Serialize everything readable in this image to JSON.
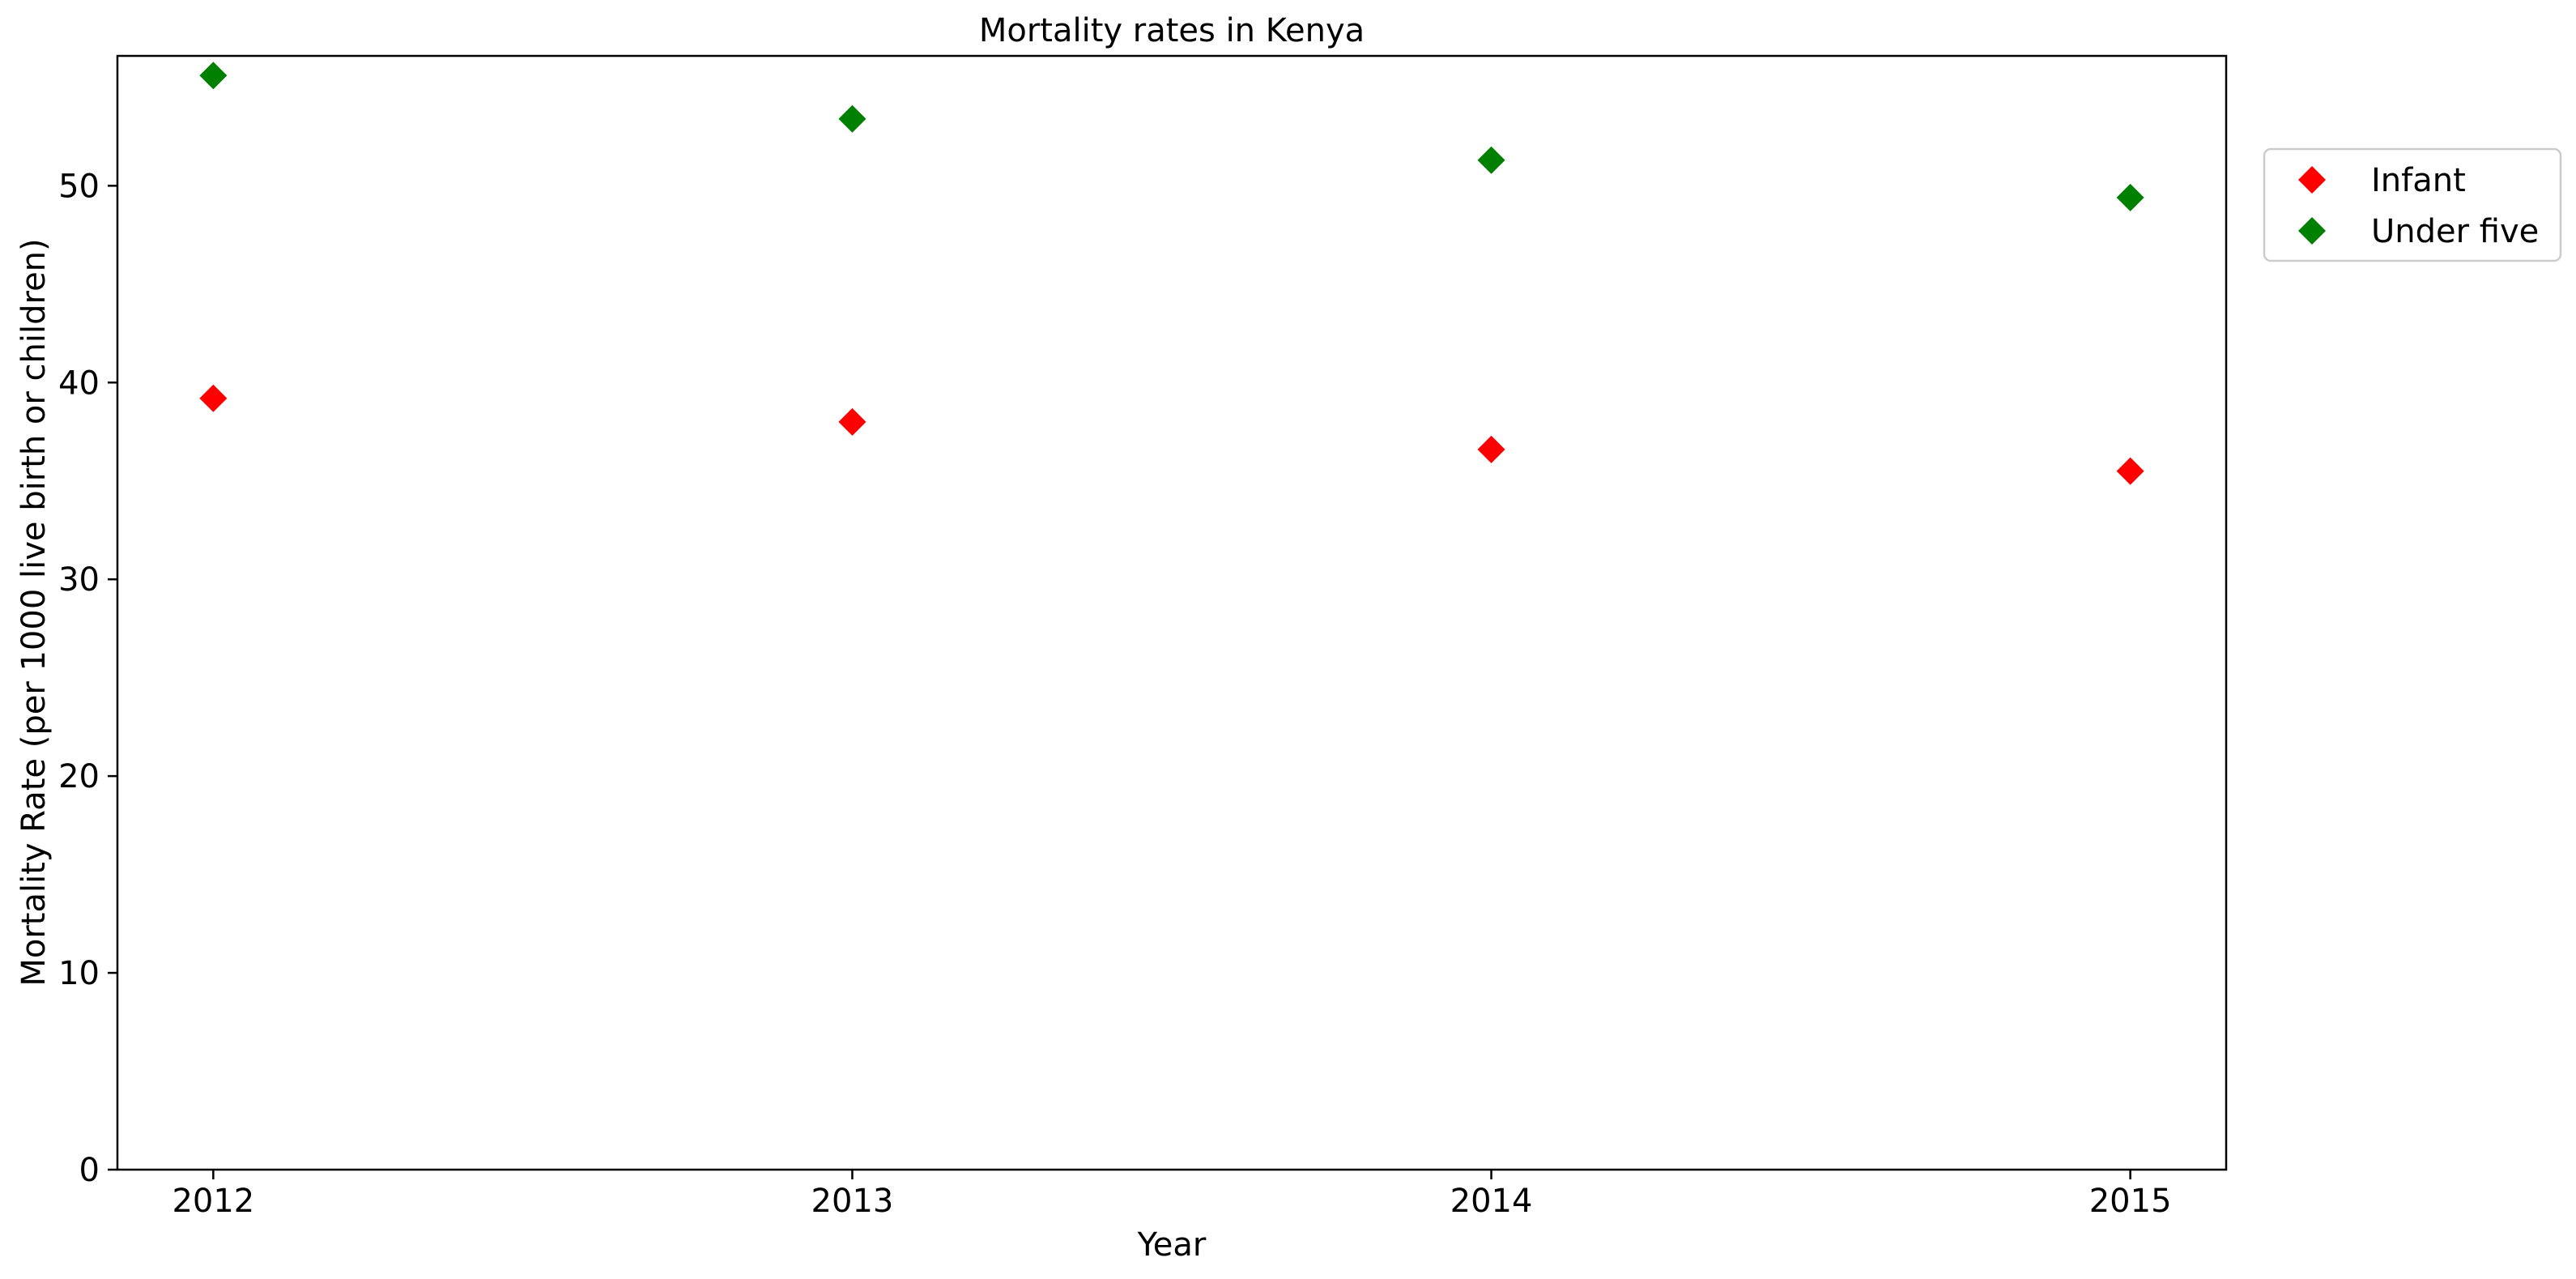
{
  "chart_data": {
    "type": "scatter",
    "title": "Mortality rates in Kenya",
    "xlabel": "Year",
    "ylabel": "Mortality Rate (per 1000 live birth or children)",
    "categories": [
      "2012",
      "2013",
      "2014",
      "2015"
    ],
    "xlim": [
      2011.85,
      2015.15
    ],
    "ylim": [
      0,
      56.6
    ],
    "yticks": [
      0,
      10,
      20,
      30,
      40,
      50
    ],
    "grid": false,
    "legend_position": "upper-right-outside",
    "marker": "diamond",
    "series": [
      {
        "name": "Infant",
        "color": "#ff0000",
        "values": [
          39.2,
          38.0,
          36.6,
          35.5
        ]
      },
      {
        "name": "Under five",
        "color": "#008000",
        "values": [
          55.6,
          53.4,
          51.3,
          49.4
        ]
      }
    ]
  }
}
